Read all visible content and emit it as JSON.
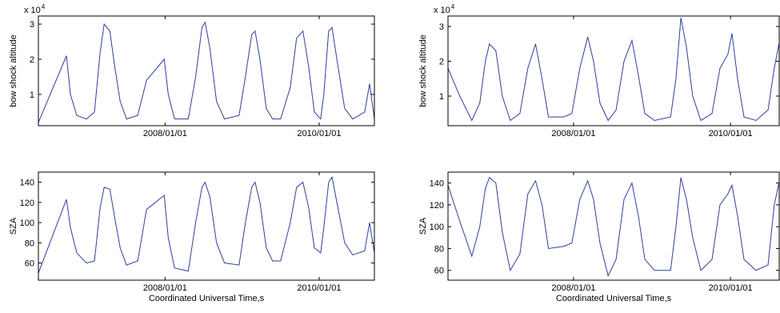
{
  "chart_data": [
    {
      "type": "line",
      "ylabel": "bow shock altitude",
      "y_multiplier": {
        "base": "x 10",
        "exponent": "4"
      },
      "color": "#2e3f9e",
      "xlim": [
        "2006-05-10",
        "2010-09-20"
      ],
      "xticks": [
        {
          "value": "2008-01-01",
          "label": "2008/01/01"
        },
        {
          "value": "2010-01-01",
          "label": "2010/01/01"
        }
      ],
      "ylim": [
        0.11,
        3.23
      ],
      "yticks": [
        1,
        2,
        3
      ],
      "x": [
        "2006-05-10",
        "2006-09-20",
        "2006-10-09",
        "2006-11-08",
        "2006-12-24",
        "2007-01-31",
        "2007-02-27",
        "2007-03-18",
        "2007-04-14",
        "2007-05-07",
        "2007-06-02",
        "2007-07-02",
        "2007-08-24",
        "2007-10-05",
        "2007-12-28",
        "2008-01-16",
        "2008-02-15",
        "2008-04-20",
        "2008-05-25",
        "2008-06-24",
        "2008-07-09",
        "2008-08-01",
        "2008-09-01",
        "2008-10-09",
        "2008-12-17",
        "2009-01-16",
        "2009-02-15",
        "2009-03-03",
        "2009-03-26",
        "2009-04-25",
        "2009-05-25",
        "2009-07-02",
        "2009-08-17",
        "2009-09-16",
        "2009-10-16",
        "2009-11-12",
        "2009-12-09",
        "2010-01-08",
        "2010-01-23",
        "2010-02-15",
        "2010-03-03",
        "2010-03-26",
        "2010-05-02",
        "2010-06-09",
        "2010-08-05",
        "2010-08-28",
        "2010-09-20"
      ],
      "values": [
        0.2,
        2.1,
        1.0,
        0.4,
        0.3,
        0.5,
        2.2,
        3.0,
        2.8,
        1.8,
        0.8,
        0.3,
        0.4,
        1.4,
        2.0,
        1.0,
        0.3,
        0.3,
        1.5,
        2.9,
        3.05,
        2.3,
        0.8,
        0.3,
        0.4,
        1.5,
        2.7,
        2.8,
        2.0,
        0.6,
        0.3,
        0.3,
        1.2,
        2.6,
        2.8,
        1.8,
        0.5,
        0.3,
        1.0,
        2.8,
        2.9,
        2.0,
        0.6,
        0.3,
        0.5,
        1.3,
        0.3
      ]
    },
    {
      "type": "line",
      "ylabel": "bow shock altitude",
      "y_multiplier": {
        "base": "x 10",
        "exponent": "4"
      },
      "color": "#2e3f9e",
      "xlim": [
        "2006-05-26",
        "2010-08-16"
      ],
      "xticks": [
        {
          "value": "2008-01-01",
          "label": "2008/01/01"
        },
        {
          "value": "2010-01-01",
          "label": "2010/01/01"
        }
      ],
      "ylim": [
        0.15,
        3.3
      ],
      "yticks": [
        1,
        2,
        3
      ],
      "x": [
        "2006-05-26",
        "2006-07-20",
        "2006-09-14",
        "2006-10-21",
        "2006-11-16",
        "2006-12-05",
        "2007-01-04",
        "2007-02-03",
        "2007-03-12",
        "2007-04-26",
        "2007-06-02",
        "2007-07-08",
        "2007-08-07",
        "2007-09-06",
        "2007-11-16",
        "2007-12-24",
        "2008-01-30",
        "2008-03-07",
        "2008-04-03",
        "2008-05-03",
        "2008-06-10",
        "2008-07-17",
        "2008-08-23",
        "2008-09-29",
        "2008-10-29",
        "2008-11-28",
        "2009-01-12",
        "2009-03-28",
        "2009-04-22",
        "2009-05-15",
        "2009-06-10",
        "2009-07-09",
        "2009-08-16",
        "2009-10-07",
        "2009-11-13",
        "2009-12-20",
        "2010-01-08",
        "2010-02-03",
        "2010-03-05",
        "2010-04-30",
        "2010-06-25",
        "2010-07-24",
        "2010-08-15"
      ],
      "values": [
        1.8,
        1.0,
        0.3,
        0.8,
        2.0,
        2.5,
        2.3,
        1.0,
        0.3,
        0.5,
        1.8,
        2.5,
        1.5,
        0.4,
        0.4,
        0.5,
        1.8,
        2.7,
        2.0,
        0.8,
        0.3,
        0.6,
        2.0,
        2.6,
        1.6,
        0.5,
        0.3,
        0.4,
        1.5,
        3.25,
        2.4,
        1.0,
        0.3,
        0.5,
        1.8,
        2.2,
        2.8,
        1.5,
        0.4,
        0.3,
        0.6,
        1.8,
        2.5
      ]
    },
    {
      "type": "line",
      "ylabel": "SZA",
      "xlabel": "Coordinated Universal Time,s",
      "color": "#2e3f9e",
      "xlim": [
        "2006-05-10",
        "2010-09-20"
      ],
      "xticks": [
        {
          "value": "2008-01-01",
          "label": "2008/01/01"
        },
        {
          "value": "2010-01-01",
          "label": "2010/01/01"
        }
      ],
      "ylim": [
        43,
        150
      ],
      "yticks": [
        60,
        80,
        100,
        120,
        140
      ],
      "x": [
        "2006-05-10",
        "2006-09-20",
        "2006-10-09",
        "2006-11-08",
        "2006-12-24",
        "2007-01-31",
        "2007-02-27",
        "2007-03-18",
        "2007-04-14",
        "2007-05-07",
        "2007-06-02",
        "2007-07-02",
        "2007-08-24",
        "2007-10-05",
        "2007-12-28",
        "2008-01-16",
        "2008-02-15",
        "2008-04-20",
        "2008-05-25",
        "2008-06-24",
        "2008-07-09",
        "2008-08-01",
        "2008-09-01",
        "2008-10-09",
        "2008-12-17",
        "2009-01-16",
        "2009-02-15",
        "2009-03-03",
        "2009-03-26",
        "2009-04-25",
        "2009-05-25",
        "2009-07-02",
        "2009-08-17",
        "2009-09-16",
        "2009-10-16",
        "2009-11-12",
        "2009-12-09",
        "2010-01-08",
        "2010-01-23",
        "2010-02-15",
        "2010-03-03",
        "2010-03-26",
        "2010-05-02",
        "2010-06-09",
        "2010-08-05",
        "2010-08-28",
        "2010-09-20"
      ],
      "values": [
        50,
        123,
        95,
        70,
        60,
        62,
        115,
        135,
        133,
        105,
        75,
        58,
        62,
        113,
        127,
        85,
        55,
        52,
        100,
        135,
        140,
        125,
        80,
        60,
        58,
        100,
        135,
        140,
        120,
        75,
        62,
        62,
        100,
        135,
        140,
        115,
        75,
        70,
        95,
        140,
        145,
        120,
        80,
        68,
        72,
        100,
        70
      ]
    },
    {
      "type": "line",
      "ylabel": "SZA",
      "xlabel": "Coordinated Universal Time,s",
      "color": "#2e3f9e",
      "xlim": [
        "2006-05-26",
        "2010-08-16"
      ],
      "xticks": [
        {
          "value": "2008-01-01",
          "label": "2008/01/01"
        },
        {
          "value": "2010-01-01",
          "label": "2010/01/01"
        }
      ],
      "ylim": [
        51,
        150
      ],
      "yticks": [
        60,
        80,
        100,
        120,
        140
      ],
      "x": [
        "2006-05-26",
        "2006-07-20",
        "2006-09-14",
        "2006-10-21",
        "2006-11-16",
        "2006-12-05",
        "2007-01-04",
        "2007-02-03",
        "2007-03-12",
        "2007-04-26",
        "2007-06-02",
        "2007-07-08",
        "2007-08-07",
        "2007-09-06",
        "2007-11-16",
        "2007-12-24",
        "2008-01-30",
        "2008-03-07",
        "2008-04-03",
        "2008-05-03",
        "2008-06-10",
        "2008-07-17",
        "2008-08-23",
        "2008-09-29",
        "2008-10-29",
        "2008-11-28",
        "2009-01-12",
        "2009-03-28",
        "2009-04-22",
        "2009-05-15",
        "2009-06-10",
        "2009-07-09",
        "2009-08-16",
        "2009-10-07",
        "2009-11-13",
        "2009-12-20",
        "2010-01-08",
        "2010-02-03",
        "2010-03-05",
        "2010-04-30",
        "2010-06-25",
        "2010-07-24",
        "2010-08-15"
      ],
      "values": [
        138,
        105,
        73,
        100,
        135,
        145,
        140,
        95,
        60,
        75,
        130,
        142,
        120,
        80,
        82,
        85,
        125,
        142,
        125,
        85,
        55,
        70,
        125,
        140,
        110,
        70,
        60,
        60,
        100,
        145,
        125,
        90,
        60,
        70,
        120,
        130,
        138,
        110,
        70,
        60,
        65,
        120,
        140
      ]
    }
  ]
}
